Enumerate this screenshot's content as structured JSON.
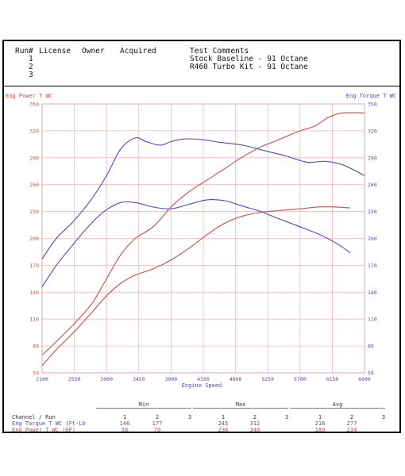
{
  "header": {
    "columns": [
      "Run#",
      "License",
      "Owner",
      "Acquired",
      "Test Comments"
    ],
    "runs": [
      {
        "run": "1",
        "comment": "Stock Baseline - 91 Octane"
      },
      {
        "run": "2",
        "comment": "R460 Turbo Kit - 91 Octane"
      },
      {
        "run": "3",
        "comment": ""
      }
    ]
  },
  "colors": {
    "power": "#c0504d",
    "torque": "#4b4bb4",
    "grid": "#f0b8b8",
    "axis_text_left": "#c0504d",
    "axis_text_right": "#4b4bb4"
  },
  "chart_data": {
    "type": "line",
    "title": "",
    "xlabel": "Engine Speed",
    "ylabel_left": "Eng Power T WC",
    "ylabel_right": "Eng Torque T WC",
    "xlim": [
      2100,
      6600
    ],
    "ylim": [
      50,
      350
    ],
    "x_ticks": [
      2100,
      2550,
      3000,
      3450,
      3900,
      4350,
      4800,
      5250,
      5700,
      6150,
      6600
    ],
    "y_ticks": [
      50,
      80,
      110,
      140,
      170,
      200,
      230,
      260,
      290,
      320,
      350
    ],
    "grid": true,
    "series": [
      {
        "name": "Eng Torque T WC",
        "run": "2",
        "axis": "right",
        "x": [
          2100,
          2300,
          2550,
          2800,
          3000,
          3200,
          3400,
          3550,
          3750,
          3900,
          4100,
          4350,
          4600,
          4900,
          5200,
          5500,
          5800,
          6050,
          6300,
          6600
        ],
        "y": [
          177,
          200,
          220,
          245,
          270,
          300,
          312,
          308,
          304,
          308,
          311,
          310,
          307,
          304,
          298,
          292,
          285,
          286,
          282,
          270
        ]
      },
      {
        "name": "Eng Torque T WC",
        "run": "1",
        "axis": "right",
        "x": [
          2100,
          2300,
          2550,
          2800,
          3000,
          3200,
          3400,
          3650,
          3900,
          4150,
          4400,
          4650,
          4900,
          5150,
          5400,
          5700,
          5950,
          6200,
          6400
        ],
        "y": [
          146,
          170,
          195,
          218,
          232,
          240,
          240,
          235,
          233,
          238,
          243,
          242,
          236,
          230,
          222,
          213,
          205,
          195,
          184
        ]
      },
      {
        "name": "Eng Power T WC",
        "run": "2",
        "axis": "left",
        "x": [
          2100,
          2300,
          2550,
          2800,
          3000,
          3200,
          3400,
          3650,
          3900,
          4150,
          4400,
          4650,
          4900,
          5150,
          5400,
          5700,
          5900,
          6100,
          6300,
          6600
        ],
        "y": [
          70,
          85,
          105,
          128,
          155,
          182,
          200,
          213,
          235,
          252,
          265,
          278,
          291,
          302,
          310,
          320,
          325,
          335,
          340,
          340
        ]
      },
      {
        "name": "Eng Power T WC",
        "run": "1",
        "axis": "left",
        "x": [
          2100,
          2300,
          2550,
          2800,
          3000,
          3200,
          3400,
          3650,
          3900,
          4150,
          4400,
          4650,
          4900,
          5150,
          5400,
          5700,
          5950,
          6200,
          6400
        ],
        "y": [
          58,
          76,
          96,
          118,
          136,
          150,
          159,
          166,
          176,
          189,
          204,
          217,
          225,
          229,
          231,
          233,
          235,
          235,
          234
        ]
      }
    ]
  },
  "stats": {
    "group_labels": [
      "Min",
      "Max",
      "Avg"
    ],
    "run_header": [
      "1",
      "2",
      "3"
    ],
    "rows": [
      {
        "label": "Channel / Run",
        "min": [
          "1",
          "2",
          "3"
        ],
        "max": [
          "1",
          "2",
          "3"
        ],
        "avg": [
          "1",
          "2",
          "3"
        ]
      },
      {
        "label": "Eng Torque T WC (Ft-Lb",
        "min": [
          "146",
          "177",
          ""
        ],
        "max": [
          "245",
          "312",
          ""
        ],
        "avg": [
          "216",
          "277",
          ""
        ]
      },
      {
        "label": "Eng Power T WC (HP)",
        "min": [
          "58",
          "70",
          ""
        ],
        "max": [
          "236",
          "340",
          ""
        ],
        "avg": [
          "180",
          "234",
          ""
        ]
      }
    ]
  }
}
